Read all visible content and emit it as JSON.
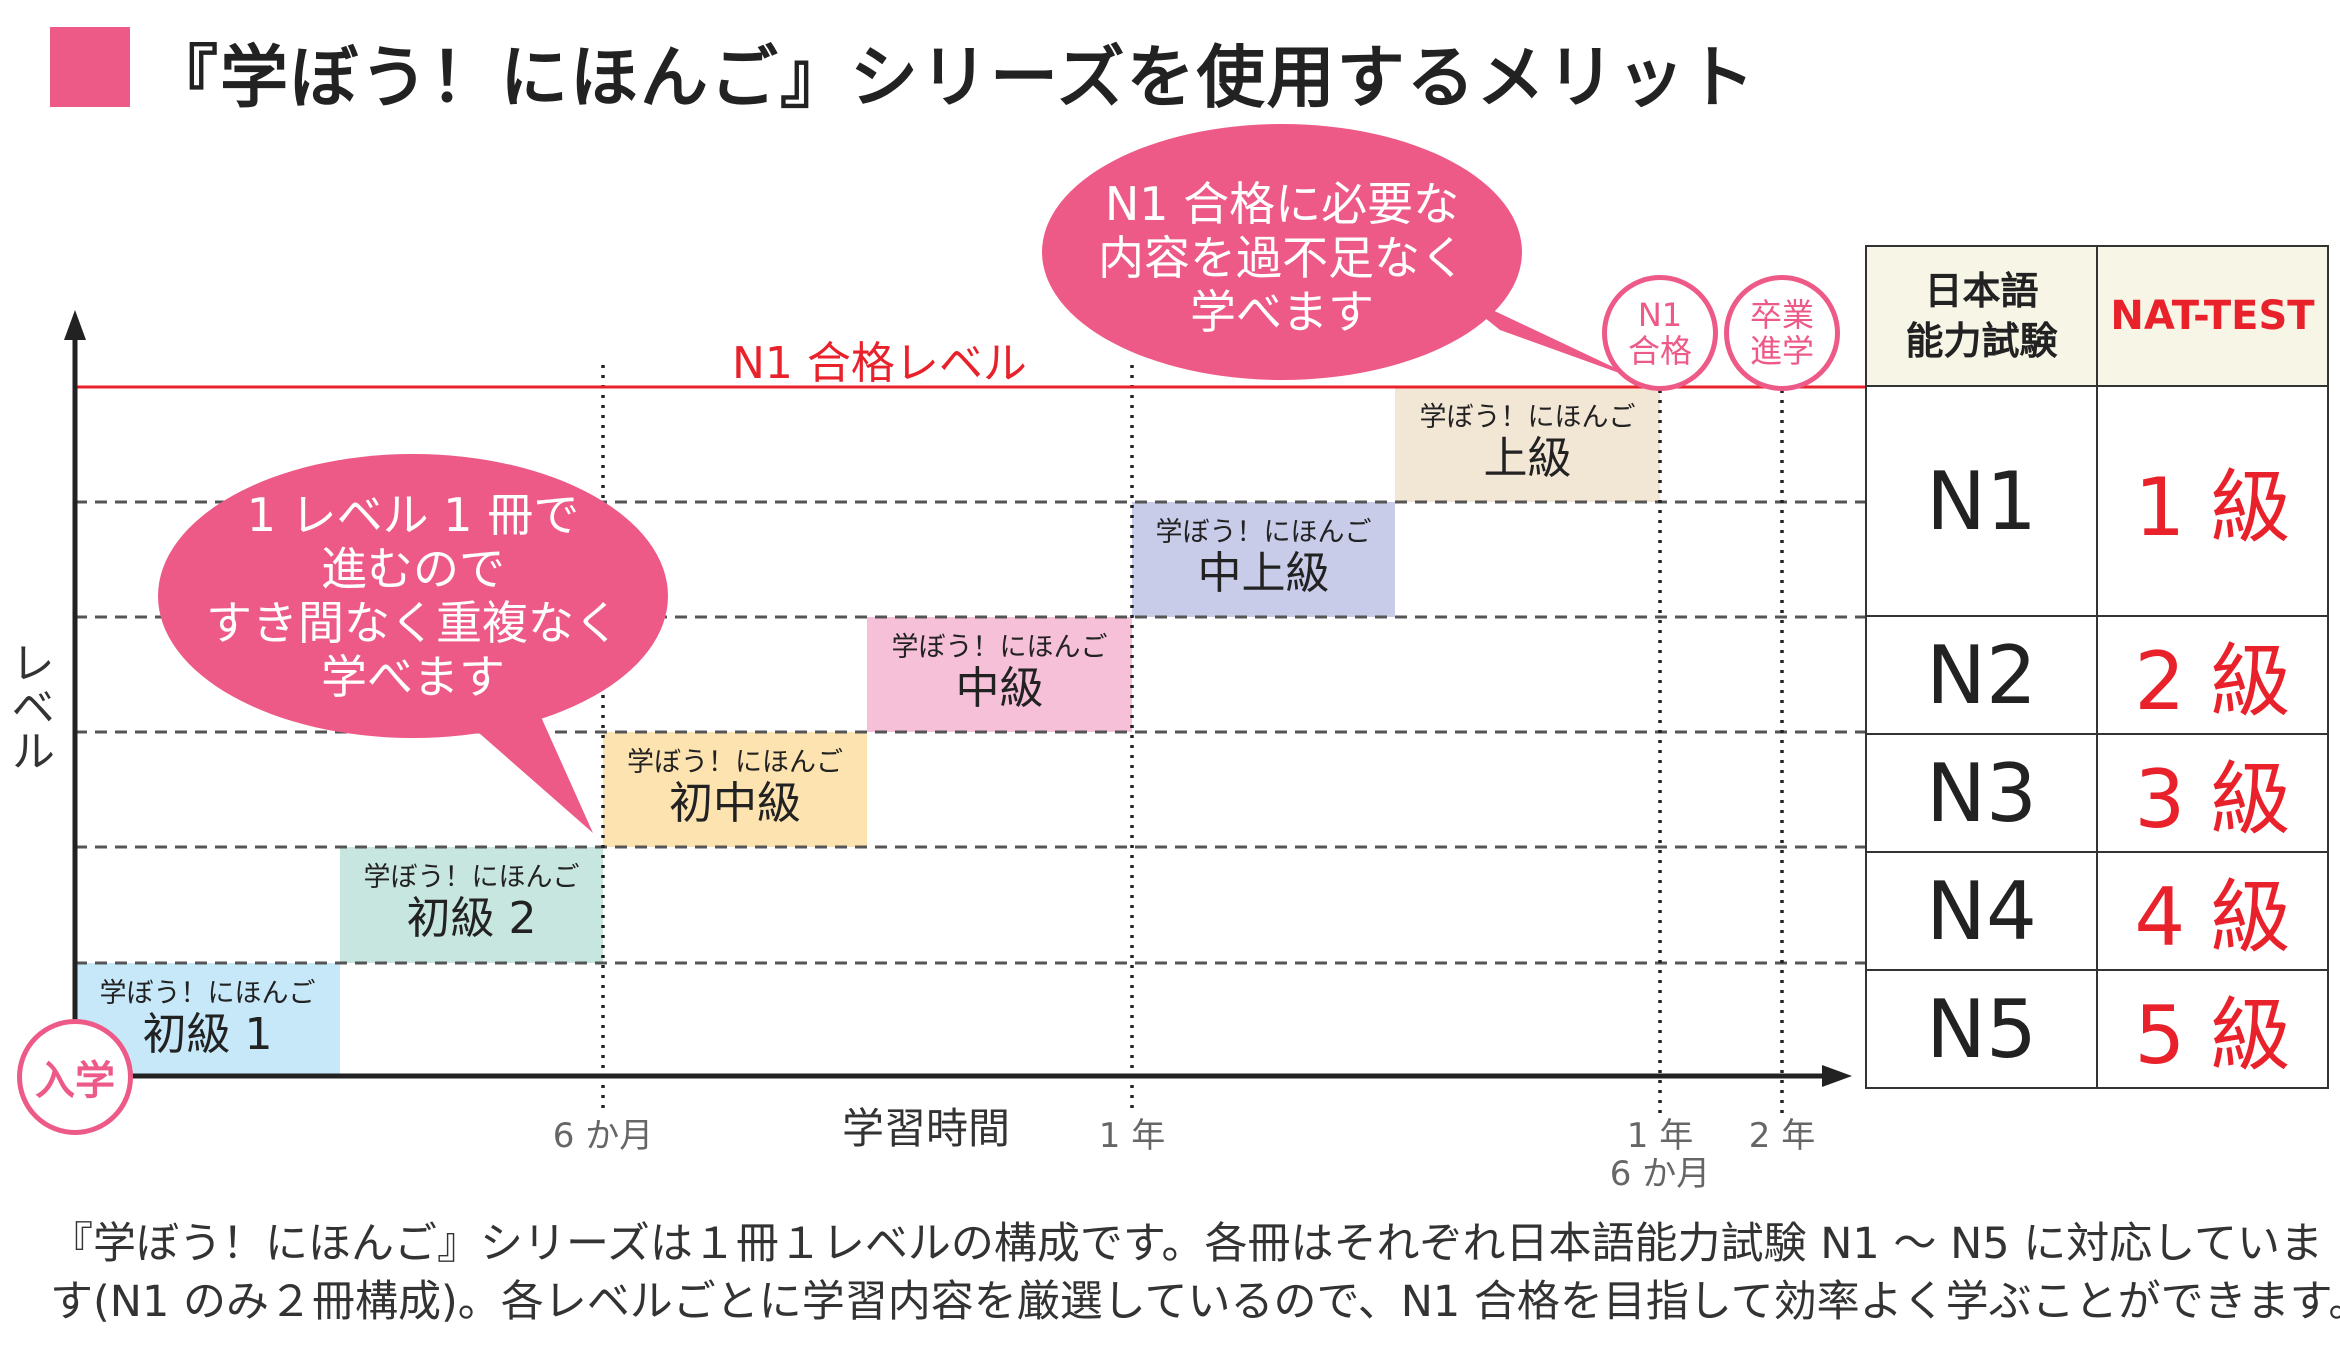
{
  "title": "『学ぼう！にほんご』シリーズを使用するメリット",
  "colors": {
    "accent": "#ee5a87",
    "n1_line": "#e8212b"
  },
  "chart": {
    "y_label": "レベル",
    "x_label": "学習時間",
    "n1_line_label": "N1 合格レベル",
    "x_ticks": [
      {
        "line1": "6 か月"
      },
      {
        "line1": "1 年"
      },
      {
        "line1": "1 年",
        "line2": "6 か月"
      },
      {
        "line1": "2 年"
      }
    ],
    "levels": [
      {
        "series": "学ぼう！にほんご",
        "name": "初級 1",
        "color": "#c7e8f8"
      },
      {
        "series": "学ぼう！にほんご",
        "name": "初級 2",
        "color": "#c8e6e0"
      },
      {
        "series": "学ぼう！にほんご",
        "name": "初中級",
        "color": "#fde3b0"
      },
      {
        "series": "学ぼう！にほんご",
        "name": "中級",
        "color": "#f6c0d8"
      },
      {
        "series": "学ぼう！にほんご",
        "name": "中上級",
        "color": "#c8cce8"
      },
      {
        "series": "学ぼう！にほんご",
        "name": "上級",
        "color": "#f2e6d5"
      }
    ],
    "bubble_left": [
      "1 レベル 1 冊で",
      "進むので",
      "すき間なく重複なく",
      "学べます"
    ],
    "bubble_right": [
      "N1 合格に必要な",
      "内容を過不足なく",
      "学べます"
    ],
    "badge_start": "入学",
    "badge_n1": [
      "N1",
      "合格"
    ],
    "badge_grad": [
      "卒業",
      "進学"
    ]
  },
  "table": {
    "headers": [
      "日本語\n能力試験",
      "NAT-TEST"
    ],
    "header_jlpt_line1": "日本語",
    "header_jlpt_line2": "能力試験",
    "rows": [
      [
        "N1",
        "1 級"
      ],
      [
        "N2",
        "2 級"
      ],
      [
        "N3",
        "3 級"
      ],
      [
        "N4",
        "4 級"
      ],
      [
        "N5",
        "5 級"
      ]
    ]
  },
  "paragraph": [
    "『学ぼう！にほんご』シリーズは１冊１レベルの構成です。各冊はそれぞれ日本語能力試験 N1 ～ N5 に対応していま",
    "す(N1 のみ２冊構成)。各レベルごとに学習内容を厳選しているので、N1 合格を目指して効率よく学ぶことができます。"
  ]
}
